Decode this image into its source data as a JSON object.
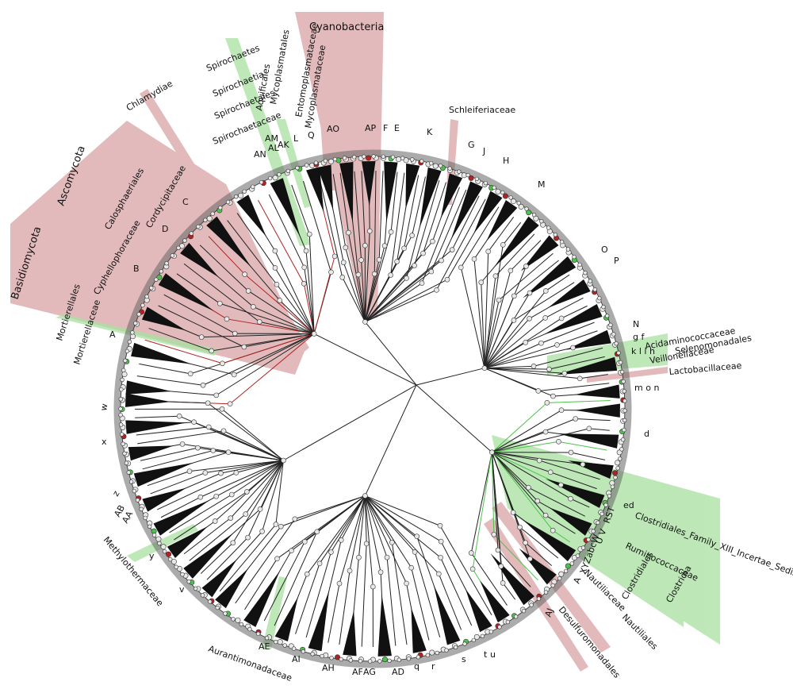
{
  "colors": {
    "enriched_red": "#b22222",
    "red_fill": "#d9a3a6",
    "depleted_green": "#4cc24c",
    "green_fill": "#a8e0a0",
    "node_gray": "#e8e8e8",
    "branch": "#222222",
    "ring": "#555555"
  },
  "clades": [
    {
      "id": "cyanobacteria",
      "name": "Cyanobacteria",
      "type": "red"
    },
    {
      "id": "ascomycota",
      "name": "Ascomycota",
      "type": "red"
    },
    {
      "id": "basidiomycota",
      "name": "Basidiomycota",
      "type": "red"
    },
    {
      "id": "chlamydiae",
      "name": "Chlamydiae",
      "type": "red"
    },
    {
      "id": "calosphaeriales",
      "name": "Calosphaeriales",
      "type": "red"
    },
    {
      "id": "cordycipitaceae",
      "name": "Cordycipitaceae",
      "type": "red"
    },
    {
      "id": "cyphellophoraceae",
      "name": "Cyphellophoraceae",
      "type": "red"
    },
    {
      "id": "mortierellales",
      "name": "Mortierellales",
      "type": "green"
    },
    {
      "id": "mortierellaceae",
      "name": "Mortierellaceae",
      "type": "green"
    },
    {
      "id": "spirochaetes",
      "name": "Spirochaetes",
      "type": "green"
    },
    {
      "id": "spirochaetia",
      "name": "Spirochaetia",
      "type": "green"
    },
    {
      "id": "spirochaetales",
      "name": "Spirochaetales",
      "type": "green"
    },
    {
      "id": "spirochaetaceae",
      "name": "Spirochaetaceae",
      "type": "green"
    },
    {
      "id": "aquificales",
      "name": "Aquificales",
      "type": "green"
    },
    {
      "id": "entomoplasmataceae",
      "name": "Entomoplasmataceae",
      "type": "green"
    },
    {
      "id": "mycoplasmatales",
      "name": "Mycoplasmatales",
      "type": "red"
    },
    {
      "id": "mycoplasmataceae",
      "name": "Mycoplasmataceae",
      "type": "red"
    },
    {
      "id": "schleiferiaceae",
      "name": "Schleiferiaceae",
      "type": "red"
    },
    {
      "id": "acidaminococcaceae",
      "name": "Acidaminococcaceae",
      "type": "green"
    },
    {
      "id": "selenomonadales",
      "name": "Selenomonadales",
      "type": "green"
    },
    {
      "id": "veillonellaceae",
      "name": "Veillonellaceae",
      "type": "green"
    },
    {
      "id": "lactobacillaceae",
      "name": "Lactobacillaceae",
      "type": "red"
    },
    {
      "id": "clostridiales_xiii",
      "name": "Clostridiales_Family_XIII_Incertae_Sedis",
      "type": "green"
    },
    {
      "id": "ruminococcaceae",
      "name": "Ruminococcaceae",
      "type": "green"
    },
    {
      "id": "clostridiales",
      "name": "Clostridiales",
      "type": "green"
    },
    {
      "id": "clostridia",
      "name": "Clostridia",
      "type": "green"
    },
    {
      "id": "nautiliales",
      "name": "Nautiliales",
      "type": "red"
    },
    {
      "id": "nautiliaceae",
      "name": "Nautiliaceae",
      "type": "red"
    },
    {
      "id": "desulfuromonadales",
      "name": "Desulfuromonadales",
      "type": "red"
    },
    {
      "id": "aurantimonadaceae",
      "name": "Aurantimonadaceae",
      "type": "green"
    },
    {
      "id": "methylothermaceae",
      "name": "Methylothermaceae",
      "type": "green"
    }
  ],
  "letters": [
    {
      "id": "A",
      "text": "A"
    },
    {
      "id": "B",
      "text": "B"
    },
    {
      "id": "C",
      "text": "C"
    },
    {
      "id": "D",
      "text": "D"
    },
    {
      "id": "E",
      "text": "E"
    },
    {
      "id": "F",
      "text": "F"
    },
    {
      "id": "G",
      "text": "G"
    },
    {
      "id": "H",
      "text": "H"
    },
    {
      "id": "J",
      "text": "J"
    },
    {
      "id": "K",
      "text": "K"
    },
    {
      "id": "L",
      "text": "L"
    },
    {
      "id": "M",
      "text": "M"
    },
    {
      "id": "N",
      "text": "N"
    },
    {
      "id": "O",
      "text": "O"
    },
    {
      "id": "P",
      "text": "P"
    },
    {
      "id": "Q",
      "text": "Q"
    },
    {
      "id": "AK",
      "text": "AK"
    },
    {
      "id": "AL",
      "text": "AL"
    },
    {
      "id": "AM",
      "text": "AM"
    },
    {
      "id": "AN",
      "text": "AN"
    },
    {
      "id": "AO",
      "text": "AO"
    },
    {
      "id": "AP",
      "text": "AP"
    },
    {
      "id": "gf",
      "text": "g f"
    },
    {
      "id": "klh",
      "text": "k l i h"
    },
    {
      "id": "mon",
      "text": "m o n"
    },
    {
      "id": "d",
      "text": "d"
    },
    {
      "id": "ed",
      "text": "ed"
    },
    {
      "id": "RST",
      "text": "RST"
    },
    {
      "id": "UV",
      "text": "U V"
    },
    {
      "id": "XYZabcW",
      "text": "XYZabcW"
    },
    {
      "id": "Ac",
      "text": "A"
    },
    {
      "id": "AJ",
      "text": "AJ"
    },
    {
      "id": "t",
      "text": "t"
    },
    {
      "id": "u",
      "text": "u"
    },
    {
      "id": "s",
      "text": "s"
    },
    {
      "id": "r",
      "text": "r"
    },
    {
      "id": "q",
      "text": "q"
    },
    {
      "id": "AD",
      "text": "AD"
    },
    {
      "id": "AG",
      "text": "AG"
    },
    {
      "id": "AF",
      "text": "AF"
    },
    {
      "id": "AH",
      "text": "AH"
    },
    {
      "id": "AI",
      "text": "AI"
    },
    {
      "id": "AE",
      "text": "AE"
    },
    {
      "id": "v",
      "text": "v"
    },
    {
      "id": "y",
      "text": "y"
    },
    {
      "id": "AA",
      "text": "AA"
    },
    {
      "id": "AB",
      "text": "AB"
    },
    {
      "id": "z",
      "text": "z"
    },
    {
      "id": "x",
      "text": "x"
    },
    {
      "id": "w",
      "text": "w"
    }
  ]
}
